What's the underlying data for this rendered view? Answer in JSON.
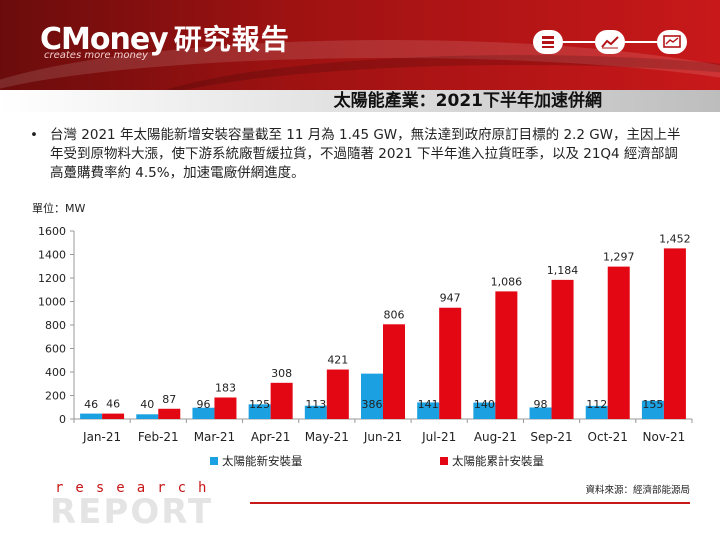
{
  "header": {
    "logo_text": "CMoney",
    "logo_suffix": "研究報告",
    "tagline": "creates more money",
    "icons": [
      "stack-icon",
      "trend-chart-icon",
      "monitor-chart-icon"
    ]
  },
  "slide": {
    "title": "太陽能產業：2021下半年加速併網",
    "bullet": "台灣 2021 年太陽能新增安裝容量截至 11 月為 1.45 GW，無法達到政府原訂目標的 2.2 GW，主因上半年受到原物料大漲，使下游系統廠暫緩拉貨，不過隨著 2021 下半年進入拉貨旺季，以及 21Q4 經濟部調高躉購費率約 4.5%，加速電廠併網進度。",
    "source": "資料來源：經濟部能源局"
  },
  "footer": {
    "research": "research",
    "report": "REPORT"
  },
  "chart_data": {
    "type": "bar",
    "unit_label": "單位：MW",
    "categories": [
      "Jan-21",
      "Feb-21",
      "Mar-21",
      "Apr-21",
      "May-21",
      "Jun-21",
      "Jul-21",
      "Aug-21",
      "Sep-21",
      "Oct-21",
      "Nov-21"
    ],
    "series": [
      {
        "name": "太陽能新安裝量",
        "color": "#1ba1e2",
        "values": [
          46,
          40,
          96,
          125,
          113,
          386,
          141,
          140,
          98,
          112,
          155
        ]
      },
      {
        "name": "太陽能累計安裝量",
        "color": "#e30613",
        "values": [
          46,
          87,
          183,
          308,
          421,
          806,
          947,
          1086,
          1184,
          1297,
          1452
        ]
      }
    ],
    "ylim": [
      0,
      1600
    ],
    "yticks": [
      0,
      200,
      400,
      600,
      800,
      1000,
      1200,
      1400,
      1600
    ],
    "ytick_labels": [
      "0",
      "200",
      "400",
      "600",
      "800",
      "1000",
      "1200",
      "1400",
      "1600"
    ],
    "data_labels": {
      "new": [
        "46",
        "40",
        "96",
        "125",
        "113",
        "386",
        "141",
        "140",
        "98",
        "112",
        "155"
      ],
      "cumulative": [
        "46",
        "87",
        "183",
        "308",
        "421",
        "806",
        "947",
        "1,086",
        "1,184",
        "1,297",
        "1,452"
      ]
    },
    "grid": false,
    "legend_position": "bottom"
  }
}
